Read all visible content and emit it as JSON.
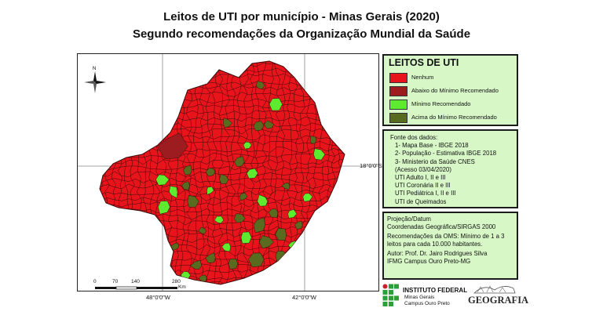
{
  "title": "Leitos de UTI por município - Minas Gerais (2020)",
  "subtitle": "Segundo recomendações da Organização Mundial da Saúde",
  "map": {
    "north_label": "N",
    "coords": {
      "lat_label": "18°0'0\"S",
      "lon_left": "48°0'0\"W",
      "lon_right": "42°0'0\"W"
    },
    "scale_bar": {
      "ticks": [
        "0",
        "70",
        "140",
        "280"
      ],
      "unit": "Km"
    },
    "colors": {
      "nenhum": "#e8141c",
      "abaixo": "#9c1c20",
      "minimo": "#5eea2e",
      "acima": "#596b1f",
      "borders": "#3a0a0a"
    }
  },
  "legend": {
    "title": "LEITOS DE UTI",
    "items": [
      {
        "label": "Nenhum",
        "color": "#e8141c"
      },
      {
        "label": "Abaixo do Mínimo Recomendado",
        "color": "#9c1c20"
      },
      {
        "label": "Mínimo Recomendado",
        "color": "#5eea2e"
      },
      {
        "label": "Acima do Mínimo Recomendado",
        "color": "#596b1f"
      }
    ]
  },
  "sources": {
    "heading": "Fonte dos dados:",
    "lines": [
      "1- Mapa Base - IBGE 2018",
      "2- População - Estimativa IBGE 2018",
      "3- Ministerio da Saúde CNES",
      "(Acesso 03/04/2020)",
      "UTI Adulto I, II e III",
      "UTI Coronária II e III",
      "UTI Pediátrica I, II e III",
      "UTI de Queimados"
    ]
  },
  "projection": {
    "lines": [
      "Projeção/Datum",
      "Coordenadas Geográfica/SIRGAS 2000"
    ],
    "recommendation": [
      "Recomendações da OMS: Mínimo de 1 a 3",
      "leitos para cada 10.000 habitantes."
    ],
    "author": [
      "Autor: Prof. Dr. Jairo Rodrigues Silva",
      "IFMG Campus Ouro Preto-MG"
    ]
  },
  "logos": {
    "institute_name": "INSTITUTO FEDERAL",
    "institute_sub1": "Minas Gerais",
    "institute_sub2": "Campus Ouro Preto",
    "geografia": "GEOGRAFIA"
  }
}
